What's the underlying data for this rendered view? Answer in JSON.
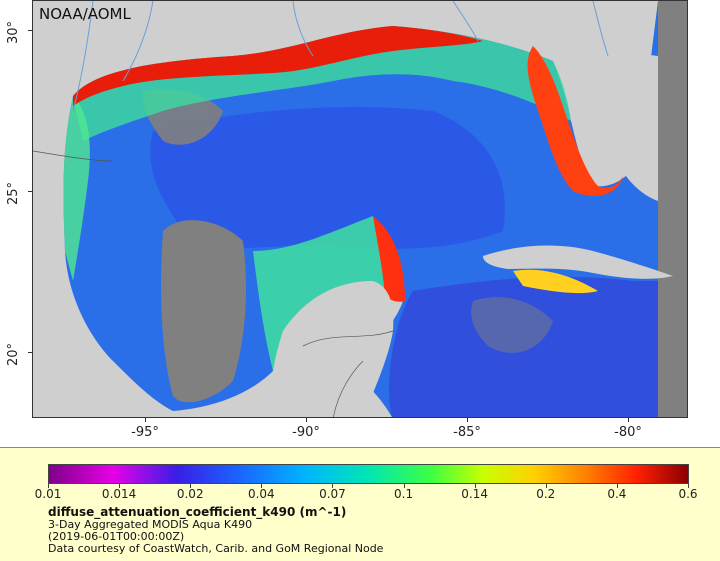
{
  "credit": "NOAA/AOML",
  "latitude_labels": [
    "30°",
    "25°",
    "20°"
  ],
  "longitude_labels": [
    "-95°",
    "-90°",
    "-85°",
    "-80°"
  ],
  "colorbar": {
    "ticks": [
      "0.01",
      "0.014",
      "0.02",
      "0.04",
      "0.07",
      "0.1",
      "0.14",
      "0.2",
      "0.4",
      "0.6"
    ],
    "colors": [
      "#80008a",
      "#e600e6",
      "#3a1ee6",
      "#1a66ff",
      "#00b4ff",
      "#00e6b4",
      "#40ff40",
      "#c8ff00",
      "#ffd000",
      "#ff8000",
      "#ff2000",
      "#8a0000"
    ]
  },
  "legend": {
    "variable": "diffuse_attenuation_coefficient_k490 (m^-1)",
    "description": "3-Day Aggregated MODIS Aqua K490",
    "time": "(2019-06-01T00:00:00Z)",
    "source": "Data courtesy of CoastWatch, Carib. and GoM Regional Node"
  },
  "colors": {
    "land": "#cfcfcf",
    "no_data": "#808080",
    "rivers": "#6aa0d8",
    "legend_bg": "#ffffcc"
  }
}
